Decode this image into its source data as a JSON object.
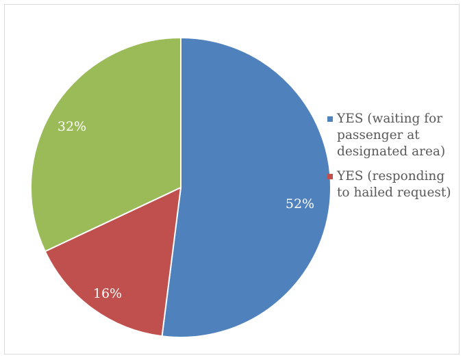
{
  "chart_data": {
    "type": "pie",
    "title": "",
    "slices": [
      {
        "label": "YES (waiting for passenger at designated area)",
        "value": 52,
        "value_label": "52%",
        "color": "#4f81bd"
      },
      {
        "label": "",
        "value": 16,
        "value_label": "16%",
        "color": "#c0504d"
      },
      {
        "label": "",
        "value": 32,
        "value_label": "32%",
        "color": "#9bbb59"
      }
    ],
    "legend": {
      "position": "right",
      "items": [
        {
          "label": "YES (waiting for passenger at designated area)",
          "color": "#4f81bd"
        },
        {
          "label": "YES (responding to hailed request)",
          "color": "#c0504d"
        }
      ]
    }
  }
}
